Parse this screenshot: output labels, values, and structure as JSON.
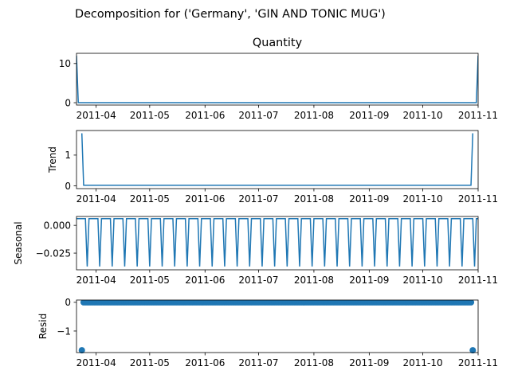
{
  "figure": {
    "suptitle": "Decomposition for ('Germany', 'GIN AND TONIC MUG')",
    "line_color": "#1f77b4"
  },
  "chart_data": [
    {
      "type": "line",
      "title": "Quantity",
      "ylabel": "",
      "x_ticks": [
        "2011-04",
        "2011-05",
        "2011-06",
        "2011-07",
        "2011-08",
        "2011-09",
        "2011-10",
        "2011-11"
      ],
      "y_ticks": [
        {
          "value": 0,
          "label": "0"
        },
        {
          "value": 10,
          "label": "10"
        }
      ],
      "x_range": [
        "2011-03-21",
        "2011-11-01"
      ],
      "ylim": [
        -0.6,
        12.6
      ],
      "series": [
        {
          "points": [
            [
              "2011-03-21",
              12
            ],
            [
              "2011-03-22",
              0
            ],
            [
              "2011-10-31",
              0
            ],
            [
              "2011-11-01",
              12
            ]
          ]
        }
      ]
    },
    {
      "type": "line",
      "title": "",
      "ylabel": "Trend",
      "x_ticks": [
        "2011-04",
        "2011-05",
        "2011-06",
        "2011-07",
        "2011-08",
        "2011-09",
        "2011-10",
        "2011-11"
      ],
      "y_ticks": [
        {
          "value": 0,
          "label": "0"
        },
        {
          "value": 1,
          "label": "1"
        }
      ],
      "x_range": [
        "2011-03-21",
        "2011-11-01"
      ],
      "ylim": [
        -0.09,
        1.8
      ],
      "series": [
        {
          "points": [
            [
              "2011-03-24",
              1.71
            ],
            [
              "2011-03-25",
              0.02
            ],
            [
              "2011-10-28",
              0.02
            ],
            [
              "2011-10-29",
              1.71
            ]
          ]
        }
      ]
    },
    {
      "type": "line",
      "title": "",
      "ylabel": "Seasonal",
      "x_ticks": [
        "2011-04",
        "2011-05",
        "2011-06",
        "2011-07",
        "2011-08",
        "2011-09",
        "2011-10",
        "2011-11"
      ],
      "y_ticks": [
        {
          "value": 0.0,
          "label": "0.000"
        },
        {
          "value": -0.025,
          "label": "−0.025"
        }
      ],
      "x_range": [
        "2011-03-21",
        "2011-11-01"
      ],
      "ylim": [
        -0.04,
        0.008
      ],
      "series": [
        {
          "pattern": {
            "period_days": 7,
            "high": 0.006,
            "low": -0.037,
            "high_days": 6,
            "start": "2011-03-21",
            "end": "2011-11-01"
          }
        }
      ]
    },
    {
      "type": "scatter",
      "title": "",
      "ylabel": "Resid",
      "x_ticks": [
        "2011-04",
        "2011-05",
        "2011-06",
        "2011-07",
        "2011-08",
        "2011-09",
        "2011-10",
        "2011-11"
      ],
      "y_ticks": [
        {
          "value": 0,
          "label": "0"
        },
        {
          "value": -1,
          "label": "−1"
        }
      ],
      "x_range": [
        "2011-03-21",
        "2011-11-01"
      ],
      "ylim": [
        -1.75,
        0.08
      ],
      "series": [
        {
          "range": {
            "start": "2011-03-25",
            "end": "2011-10-28",
            "value": 0.0
          },
          "outliers": [
            [
              "2011-03-24",
              -1.67
            ],
            [
              "2011-10-29",
              -1.67
            ]
          ]
        }
      ]
    }
  ]
}
